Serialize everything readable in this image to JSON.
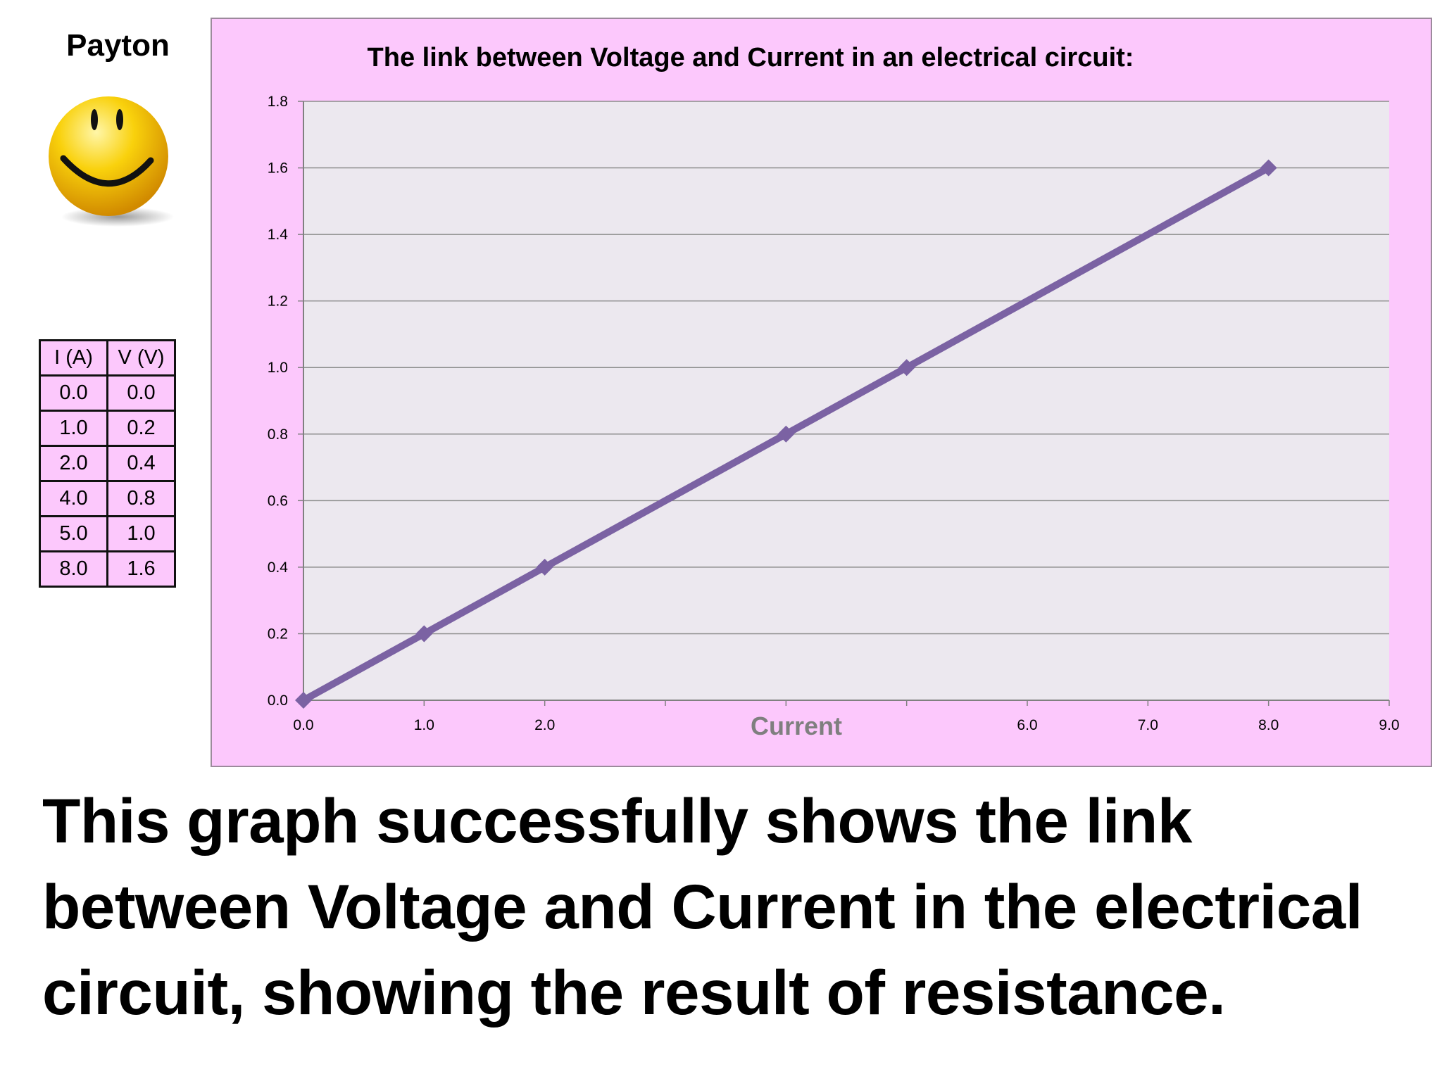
{
  "author": "Payton",
  "table": {
    "headers": [
      "I (A)",
      "V (V)"
    ],
    "rows": [
      [
        "0.0",
        "0.0"
      ],
      [
        "1.0",
        "0.2"
      ],
      [
        "2.0",
        "0.4"
      ],
      [
        "4.0",
        "0.8"
      ],
      [
        "5.0",
        "1.0"
      ],
      [
        "8.0",
        "1.6"
      ]
    ]
  },
  "chart_data": {
    "type": "line",
    "title": "The link between Voltage and Current in an electrical circuit:",
    "xlabel": "Current",
    "ylabel": "",
    "xlim": [
      0,
      9
    ],
    "ylim": [
      0,
      1.8
    ],
    "x_ticks": [
      "0.0",
      "1.0",
      "2.0",
      "",
      "",
      "",
      "6.0",
      "7.0",
      "8.0",
      "9.0"
    ],
    "x_tick_values": [
      0,
      1,
      2,
      3,
      4,
      5,
      6,
      7,
      8,
      9
    ],
    "y_ticks": [
      "0.0",
      "0.2",
      "0.4",
      "0.6",
      "0.8",
      "1.0",
      "1.2",
      "1.4",
      "1.6",
      "1.8"
    ],
    "y_tick_values": [
      0,
      0.2,
      0.4,
      0.6,
      0.8,
      1.0,
      1.2,
      1.4,
      1.6,
      1.8
    ],
    "grid": "horizontal",
    "marker": "diamond",
    "series": [
      {
        "x": [
          0,
          1,
          2,
          4,
          5,
          8
        ],
        "y": [
          0,
          0.2,
          0.4,
          0.8,
          1.0,
          1.6
        ],
        "color": "#7b62a3"
      }
    ],
    "colors": {
      "plot_bg": "#ece8ef",
      "frame_bg": "#fcc8fc",
      "grid": "#8c8c8c",
      "xlabel": "#7f7f7f"
    }
  },
  "conclusion": "This graph successfully shows the link between Voltage and Current in the electrical circuit, showing the result of resistance."
}
